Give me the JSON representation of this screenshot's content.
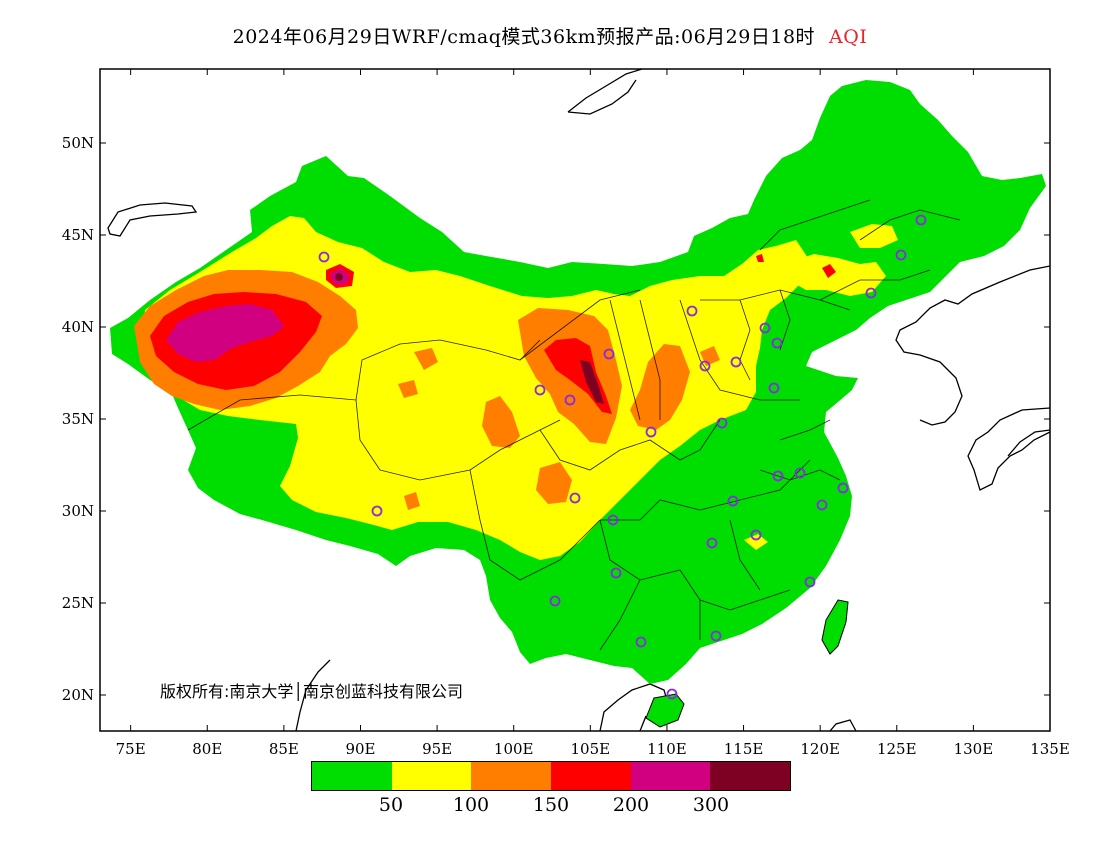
{
  "title": {
    "text": "2024年06月29日WRF/cmaq模式36km预报产品:06月29日18时",
    "variable": "AQI",
    "variable_color": "#e8242c"
  },
  "copyright": "版权所有:南京大学│南京创蓝科技有限公司",
  "axes": {
    "x_ticks": [
      "75E",
      "80E",
      "85E",
      "90E",
      "95E",
      "100E",
      "105E",
      "110E",
      "115E",
      "120E",
      "125E",
      "130E",
      "135E"
    ],
    "y_ticks": [
      "20N",
      "25N",
      "30N",
      "35N",
      "40N",
      "45N",
      "50N"
    ]
  },
  "legend": {
    "colors": [
      "#00dd00",
      "#ffff00",
      "#ff7e00",
      "#ff0000",
      "#d00080",
      "#7e0023"
    ],
    "labels": [
      "50",
      "100",
      "150",
      "200",
      "300"
    ]
  },
  "palette": {
    "green": "#00dd00",
    "yellow": "#ffff00",
    "orange": "#ff7e00",
    "red": "#ff0000",
    "purple": "#d00080",
    "maroon": "#7e0023",
    "station_marker": "#8a2be2"
  }
}
